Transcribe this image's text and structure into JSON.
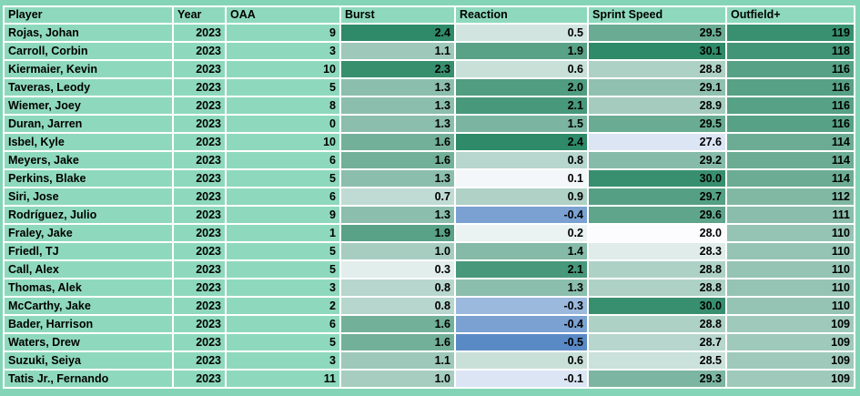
{
  "chart_data": {
    "type": "table",
    "columns": [
      "Player",
      "Year",
      "OAA",
      "Burst",
      "Reaction",
      "Sprint Speed",
      "Outfield+"
    ],
    "column_keys": [
      "player",
      "year",
      "oaa",
      "burst",
      "reaction",
      "sprint_speed",
      "outfield_plus"
    ],
    "rows": [
      [
        "Rojas, Johan",
        "2023",
        "9",
        "2.4",
        "0.5",
        "29.5",
        "119"
      ],
      [
        "Carroll, Corbin",
        "2023",
        "3",
        "1.1",
        "1.9",
        "30.1",
        "118"
      ],
      [
        "Kiermaier, Kevin",
        "2023",
        "10",
        "2.3",
        "0.6",
        "28.8",
        "116"
      ],
      [
        "Taveras, Leody",
        "2023",
        "5",
        "1.3",
        "2.0",
        "29.1",
        "116"
      ],
      [
        "Wiemer, Joey",
        "2023",
        "8",
        "1.3",
        "2.1",
        "28.9",
        "116"
      ],
      [
        "Duran, Jarren",
        "2023",
        "0",
        "1.3",
        "1.5",
        "29.5",
        "116"
      ],
      [
        "Isbel, Kyle",
        "2023",
        "10",
        "1.6",
        "2.4",
        "27.6",
        "114"
      ],
      [
        "Meyers, Jake",
        "2023",
        "6",
        "1.6",
        "0.8",
        "29.2",
        "114"
      ],
      [
        "Perkins, Blake",
        "2023",
        "5",
        "1.3",
        "0.1",
        "30.0",
        "114"
      ],
      [
        "Siri, Jose",
        "2023",
        "6",
        "0.7",
        "0.9",
        "29.7",
        "112"
      ],
      [
        "Rodríguez, Julio",
        "2023",
        "9",
        "1.3",
        "-0.4",
        "29.6",
        "111"
      ],
      [
        "Fraley, Jake",
        "2023",
        "1",
        "1.9",
        "0.2",
        "28.0",
        "110"
      ],
      [
        "Friedl, TJ",
        "2023",
        "5",
        "1.0",
        "1.4",
        "28.3",
        "110"
      ],
      [
        "Call, Alex",
        "2023",
        "5",
        "0.3",
        "2.1",
        "28.8",
        "110"
      ],
      [
        "Thomas, Alek",
        "2023",
        "3",
        "0.8",
        "1.3",
        "28.8",
        "110"
      ],
      [
        "McCarthy, Jake",
        "2023",
        "2",
        "0.8",
        "-0.3",
        "30.0",
        "110"
      ],
      [
        "Bader, Harrison",
        "2023",
        "6",
        "1.6",
        "-0.4",
        "28.8",
        "109"
      ],
      [
        "Waters, Drew",
        "2023",
        "5",
        "1.6",
        "-0.5",
        "28.7",
        "109"
      ],
      [
        "Suzuki, Seiya",
        "2023",
        "3",
        "1.1",
        "0.6",
        "28.5",
        "109"
      ],
      [
        "Tatis Jr., Fernando",
        "2023",
        "11",
        "1.0",
        "-0.1",
        "29.3",
        "109"
      ]
    ],
    "layout_hints": {
      "gridlines": "white separators between cells",
      "heatmap_columns": [
        "Burst",
        "Reaction",
        "Sprint Speed",
        "Outfield+"
      ],
      "plain_columns": [
        "Player",
        "Year",
        "OAA"
      ]
    }
  },
  "conditional_formatting": {
    "palette": {
      "low": "#5A8AC6",
      "mid": "#FCFCFF",
      "high": "#2E8A68"
    },
    "scales": {
      "burst": {
        "min": -2.4,
        "mid": 0.0,
        "max": 2.4
      },
      "reaction": {
        "min": -0.5,
        "mid": 0.0,
        "max": 2.4
      },
      "sprint_speed": {
        "min": 26.0,
        "mid": 28.0,
        "max": 30.1
      },
      "outfield_plus": {
        "min": 80,
        "mid": 100,
        "max": 120
      }
    }
  },
  "theme": {
    "cell_bg": "#8ED9BE",
    "outer_bg": "#84D5B7",
    "gridline": "#FFFFFF",
    "text": "#000000"
  }
}
